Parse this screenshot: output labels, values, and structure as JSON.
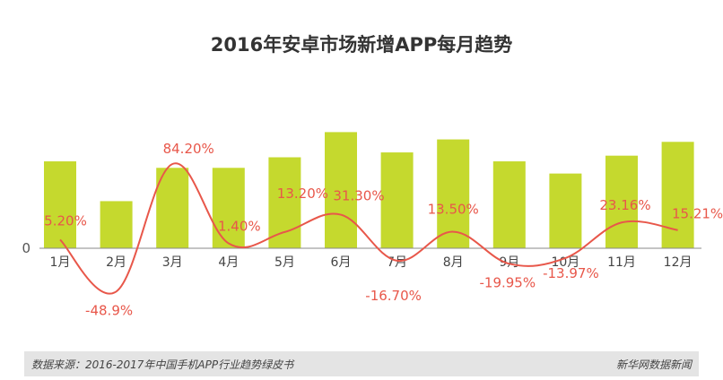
{
  "chart_data": {
    "type": "bar+line",
    "title": "2016年安卓市场新增APP每月趋势",
    "categories": [
      "1月",
      "2月",
      "3月",
      "4月",
      "5月",
      "6月",
      "7月",
      "8月",
      "9月",
      "10月",
      "11月",
      "12月"
    ],
    "bar_series": {
      "values": [
        107,
        58,
        99,
        99,
        112,
        143,
        118,
        134,
        107,
        92,
        114,
        131
      ],
      "note": "bar values unlabeled; relative heights only"
    },
    "line_series": {
      "values": [
        5.2,
        -48.9,
        84.2,
        1.4,
        13.2,
        31.3,
        -16.7,
        13.5,
        -19.95,
        -13.97,
        23.16,
        15.21
      ],
      "labels": [
        "5.20%",
        "-48.9%",
        "84.20%",
        "1.40%",
        "13.20%",
        "31.30%",
        "-16.70%",
        "13.50%",
        "-19.95%",
        "-13.97%",
        "23.16%",
        "15.21%"
      ]
    },
    "y_axis_tick": "0",
    "colors": {
      "bar": "#c5d92e",
      "line": "#e8574a",
      "label": "#e8574a"
    }
  },
  "footer": {
    "source": "数据来源：2016-2017年中国手机APP行业趋势绿皮书",
    "brand": "新华网数据新闻"
  }
}
